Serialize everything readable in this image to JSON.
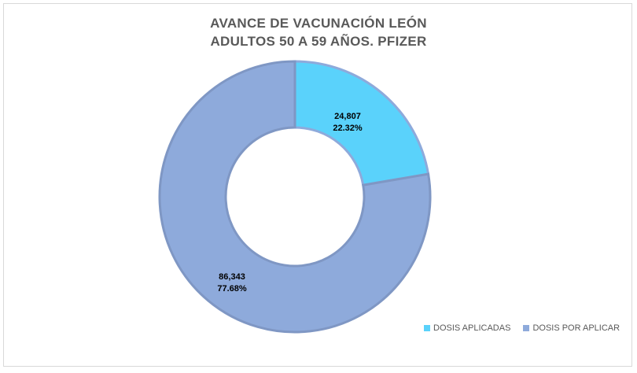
{
  "chart_data": {
    "type": "pie",
    "title_lines": [
      "AVANCE DE VACUNACIÓN LEÓN",
      "ADULTOS 50 A 59 AÑOS. PFIZER"
    ],
    "donut": true,
    "series": [
      {
        "name": "DOSIS APLICADAS",
        "value": 24807,
        "value_label": "24,807",
        "percent_label": "22.32%",
        "color": "#5ad2fb"
      },
      {
        "name": "DOSIS POR APLICAR",
        "value": 86343,
        "value_label": "86,343",
        "percent_label": "77.68%",
        "color": "#8eaadb"
      }
    ],
    "legend_position": "bottom-right"
  }
}
